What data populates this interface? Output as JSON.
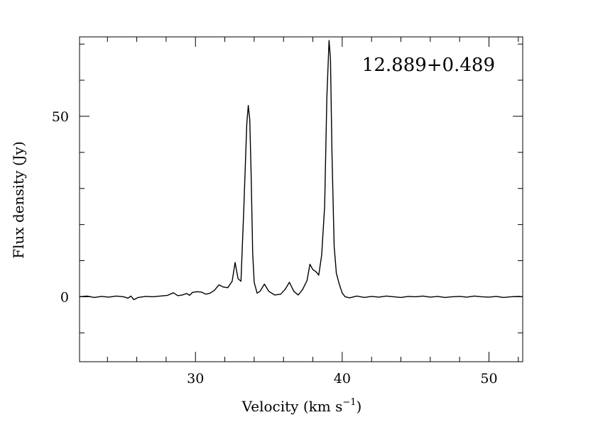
{
  "chart_data": {
    "type": "line",
    "title": "",
    "annotation": "12.889+0.489",
    "xlabel": "Velocity (km s",
    "xlabel_sup": "−1",
    "xlabel_close": ")",
    "ylabel": "Flux density (Jy)",
    "xlim": [
      22.1,
      52.3
    ],
    "ylim": [
      -18,
      72
    ],
    "x_major_ticks": [
      30,
      40,
      50
    ],
    "x_tick_labels": [
      "30",
      "40",
      "50"
    ],
    "x_minor_step": 2,
    "y_major_ticks": [
      0,
      50
    ],
    "y_tick_labels": [
      "0",
      "50"
    ],
    "y_minor_step": 10,
    "grid": false,
    "legend": "none",
    "line_color": "#000000",
    "series": [
      {
        "x": [
          22.1,
          22.6,
          23.1,
          23.6,
          24.1,
          24.6,
          25.1,
          25.4,
          25.6,
          25.8,
          26.1,
          26.6,
          27.1,
          27.6,
          28.1,
          28.5,
          28.8,
          29.1,
          29.4,
          29.6,
          29.8,
          30.1,
          30.4,
          30.7,
          31.0,
          31.3,
          31.6,
          31.9,
          32.2,
          32.5,
          32.7,
          32.9,
          33.1,
          33.3,
          33.5,
          33.6,
          33.7,
          33.8,
          33.9,
          34.0,
          34.2,
          34.4,
          34.7,
          35.0,
          35.4,
          35.8,
          36.1,
          36.4,
          36.7,
          37.0,
          37.3,
          37.6,
          37.8,
          38.0,
          38.2,
          38.4,
          38.6,
          38.8,
          38.95,
          39.1,
          39.2,
          39.3,
          39.45,
          39.6,
          39.8,
          40.0,
          40.2,
          40.5,
          41.0,
          41.5,
          42.0,
          42.5,
          43.0,
          43.5,
          44.0,
          44.5,
          45.0,
          45.5,
          46.0,
          46.5,
          47.0,
          47.5,
          48.0,
          48.5,
          49.0,
          49.5,
          50.0,
          50.5,
          51.0,
          51.5,
          52.0,
          52.3
        ],
        "y": [
          0.0,
          0.2,
          -0.2,
          0.1,
          -0.1,
          0.2,
          0.0,
          -0.4,
          0.2,
          -0.8,
          -0.2,
          0.1,
          0.0,
          0.2,
          0.4,
          1.1,
          0.3,
          0.5,
          0.9,
          0.4,
          1.2,
          1.4,
          1.3,
          0.7,
          1.0,
          1.8,
          3.3,
          2.7,
          2.5,
          4.3,
          9.5,
          5.0,
          4.3,
          25.0,
          48.0,
          53.0,
          49.0,
          33.0,
          12.0,
          4.0,
          1.0,
          1.5,
          3.5,
          1.5,
          0.5,
          0.7,
          2.0,
          4.0,
          1.5,
          0.5,
          2.0,
          4.5,
          9.0,
          7.5,
          7.0,
          6.0,
          11.5,
          25.0,
          55.0,
          71.0,
          66.0,
          40.0,
          14.0,
          6.5,
          3.5,
          1.0,
          0.0,
          -0.3,
          0.2,
          -0.2,
          0.1,
          -0.1,
          0.2,
          0.0,
          -0.2,
          0.1,
          0.0,
          0.2,
          -0.1,
          0.1,
          -0.2,
          0.0,
          0.1,
          -0.1,
          0.2,
          0.0,
          -0.1,
          0.1,
          -0.2,
          0.0,
          0.1,
          0.0
        ]
      }
    ]
  }
}
